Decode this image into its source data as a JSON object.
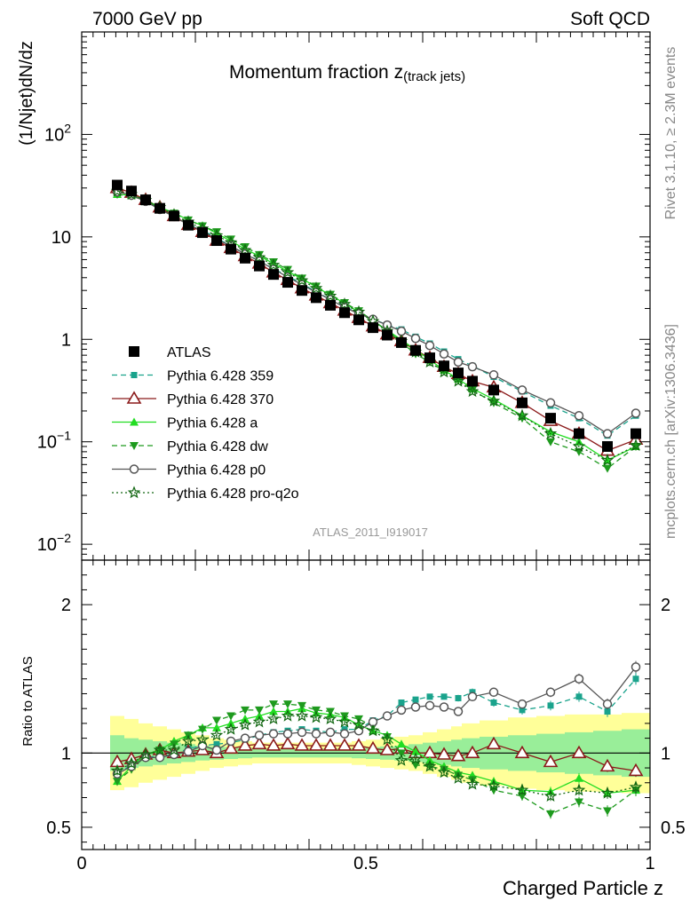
{
  "header": {
    "left": "7000 GeV pp",
    "right": "Soft QCD"
  },
  "side_labels": {
    "rivet": "Rivet 3.1.10, ≥ 2.3M events",
    "mcplots": "mcplots.cern.ch [arXiv:1306.3436]"
  },
  "chart_data": [
    {
      "type": "line",
      "panel": "main",
      "title_main": "Momentum fraction z",
      "title_sub": "(track jets)",
      "ylabel": "(1/Njet)dN/dz",
      "yscale": "log",
      "ylim": [
        0.007,
        1000
      ],
      "xlim": [
        0,
        1
      ],
      "yticks": [
        {
          "v": 0.01,
          "label": "10",
          "exp": "−2"
        },
        {
          "v": 0.1,
          "label": "10",
          "exp": "−1"
        },
        {
          "v": 1,
          "label": "1",
          "exp": ""
        },
        {
          "v": 10,
          "label": "10",
          "exp": ""
        },
        {
          "v": 100,
          "label": "10",
          "exp": "2"
        }
      ],
      "watermark": "ATLAS_2011_I919017",
      "x": [
        0.0625,
        0.0875,
        0.1125,
        0.1375,
        0.1625,
        0.1875,
        0.2125,
        0.2375,
        0.2625,
        0.2875,
        0.3125,
        0.3375,
        0.3625,
        0.3875,
        0.4125,
        0.4375,
        0.4625,
        0.4875,
        0.5125,
        0.5375,
        0.5625,
        0.5875,
        0.6125,
        0.6375,
        0.6625,
        0.6875,
        0.725,
        0.775,
        0.825,
        0.875,
        0.925,
        0.975
      ],
      "series": [
        {
          "name": "ATLAS",
          "color": "#000000",
          "marker": "square",
          "line": "none",
          "values": [
            32,
            28,
            23,
            19,
            16,
            13,
            11,
            9.2,
            7.6,
            6.2,
            5.2,
            4.3,
            3.6,
            3.0,
            2.55,
            2.15,
            1.82,
            1.55,
            1.3,
            1.1,
            0.93,
            0.78,
            0.66,
            0.55,
            0.47,
            0.39,
            0.32,
            0.24,
            0.17,
            0.12,
            0.09,
            0.12
          ]
        },
        {
          "name": "Pythia 6.428 359",
          "color": "#1aa38c",
          "marker": "smallsquare",
          "line": "dashed",
          "values": [
            27.5,
            25.8,
            22.4,
            18.6,
            15.8,
            13.4,
            11.6,
            9.8,
            8.1,
            6.8,
            5.85,
            4.9,
            4.15,
            3.5,
            2.92,
            2.45,
            2.1,
            1.8,
            1.58,
            1.38,
            1.25,
            1.06,
            0.91,
            0.76,
            0.64,
            0.55,
            0.43,
            0.31,
            0.225,
            0.17,
            0.115,
            0.18
          ]
        },
        {
          "name": "Pythia 6.428 370",
          "color": "#8b1a1a",
          "marker": "triangle-open",
          "line": "solid",
          "values": [
            30,
            27,
            23,
            19.4,
            16,
            13.1,
            11.2,
            9.2,
            7.8,
            6.5,
            5.5,
            4.5,
            3.8,
            3.15,
            2.68,
            2.26,
            1.91,
            1.62,
            1.34,
            1.12,
            0.96,
            0.78,
            0.66,
            0.54,
            0.46,
            0.39,
            0.34,
            0.24,
            0.16,
            0.12,
            0.082,
            0.105
          ]
        },
        {
          "name": "Pythia 6.428 a",
          "color": "#22dd22",
          "marker": "triangle",
          "line": "solid",
          "values": [
            26,
            25.5,
            22.8,
            19.4,
            17.2,
            14.6,
            12.9,
            10.8,
            9.1,
            7.6,
            6.5,
            5.5,
            4.6,
            3.9,
            3.25,
            2.7,
            2.25,
            1.85,
            1.5,
            1.23,
            0.99,
            0.79,
            0.63,
            0.5,
            0.41,
            0.33,
            0.26,
            0.18,
            0.125,
            0.1,
            0.066,
            0.09
          ]
        },
        {
          "name": "Pythia 6.428 dw",
          "color": "#1e9a1e",
          "marker": "triangle-down",
          "line": "dashed",
          "values": [
            26,
            25,
            22.6,
            19.4,
            17,
            14.6,
            12.8,
            11.2,
            9.5,
            8,
            6.7,
            5.7,
            4.8,
            3.95,
            3.3,
            2.75,
            2.28,
            1.9,
            1.53,
            1.22,
            0.93,
            0.72,
            0.6,
            0.49,
            0.4,
            0.32,
            0.24,
            0.17,
            0.1,
            0.08,
            0.055,
            0.09
          ]
        },
        {
          "name": "Pythia 6.428 p0",
          "color": "#555555",
          "marker": "circle-open",
          "line": "solid",
          "values": [
            27.5,
            25.5,
            22.2,
            18.5,
            15.8,
            13.1,
            11.5,
            9.4,
            8.2,
            6.8,
            5.8,
            4.85,
            4.05,
            3.42,
            2.87,
            2.45,
            2.05,
            1.78,
            1.57,
            1.38,
            1.2,
            1.02,
            0.87,
            0.72,
            0.6,
            0.54,
            0.45,
            0.32,
            0.24,
            0.18,
            0.12,
            0.19
          ]
        },
        {
          "name": "Pythia 6.428 pro-q2o",
          "color": "#116611",
          "marker": "star",
          "line": "dotted",
          "values": [
            28,
            26,
            22.8,
            19.4,
            16.4,
            14,
            12,
            10.3,
            8.8,
            7.4,
            6.3,
            5.3,
            4.5,
            3.75,
            3.15,
            2.65,
            2.2,
            1.85,
            1.5,
            1.2,
            0.96,
            0.75,
            0.6,
            0.48,
            0.39,
            0.31,
            0.25,
            0.18,
            0.12,
            0.09,
            0.066,
            0.092
          ]
        }
      ]
    },
    {
      "type": "line",
      "panel": "ratio",
      "ylabel": "Ratio to ATLAS",
      "xlabel": "Charged Particle z",
      "ylim": [
        0.35,
        2.3
      ],
      "yticks": [
        {
          "v": 0.5,
          "label": "0.5"
        },
        {
          "v": 1,
          "label": "1"
        },
        {
          "v": 2,
          "label": "2"
        }
      ],
      "xticks": [
        {
          "v": 0,
          "label": "0"
        },
        {
          "v": 0.5,
          "label": "0.5"
        },
        {
          "v": 1,
          "label": "1"
        }
      ],
      "band_inner": [
        0.12,
        0.1,
        0.09,
        0.08,
        0.07,
        0.06,
        0.05,
        0.045,
        0.04,
        0.035,
        0.03,
        0.03,
        0.03,
        0.03,
        0.03,
        0.03,
        0.03,
        0.035,
        0.04,
        0.045,
        0.05,
        0.06,
        0.07,
        0.08,
        0.09,
        0.1,
        0.11,
        0.12,
        0.13,
        0.14,
        0.15,
        0.16
      ],
      "band_outer": [
        0.25,
        0.23,
        0.2,
        0.18,
        0.16,
        0.14,
        0.12,
        0.1,
        0.09,
        0.08,
        0.07,
        0.07,
        0.07,
        0.07,
        0.07,
        0.07,
        0.07,
        0.08,
        0.09,
        0.1,
        0.11,
        0.12,
        0.14,
        0.16,
        0.18,
        0.2,
        0.22,
        0.24,
        0.25,
        0.26,
        0.26,
        0.27
      ],
      "ratios": [
        [
          0.86,
          0.92,
          0.97,
          0.98,
          0.99,
          1.03,
          1.05,
          1.06,
          1.07,
          1.09,
          1.12,
          1.14,
          1.15,
          1.16,
          1.15,
          1.14,
          1.16,
          1.16,
          1.22,
          1.25,
          1.34,
          1.36,
          1.38,
          1.38,
          1.37,
          1.41,
          1.34,
          1.29,
          1.32,
          1.38,
          1.28,
          1.5
        ],
        [
          0.94,
          0.96,
          0.99,
          1.02,
          1.0,
          1.01,
          1.02,
          1.0,
          1.03,
          1.05,
          1.06,
          1.05,
          1.06,
          1.05,
          1.05,
          1.05,
          1.05,
          1.05,
          1.03,
          1.02,
          1.03,
          1.0,
          1.0,
          0.99,
          0.98,
          1.0,
          1.06,
          1.0,
          0.94,
          1.0,
          0.91,
          0.88
        ],
        [
          0.81,
          0.91,
          0.99,
          1.02,
          1.08,
          1.12,
          1.17,
          1.17,
          1.2,
          1.23,
          1.25,
          1.28,
          1.28,
          1.3,
          1.27,
          1.26,
          1.24,
          1.19,
          1.15,
          1.12,
          1.06,
          1.01,
          0.95,
          0.91,
          0.87,
          0.85,
          0.81,
          0.75,
          0.74,
          0.83,
          0.73,
          0.75
        ],
        [
          0.81,
          0.89,
          0.98,
          1.02,
          1.06,
          1.12,
          1.16,
          1.22,
          1.25,
          1.29,
          1.29,
          1.33,
          1.33,
          1.32,
          1.29,
          1.28,
          1.25,
          1.23,
          1.18,
          1.11,
          1.0,
          0.92,
          0.91,
          0.89,
          0.85,
          0.82,
          0.75,
          0.71,
          0.59,
          0.67,
          0.61,
          0.75
        ],
        [
          0.86,
          0.91,
          0.97,
          0.97,
          0.99,
          1.01,
          1.05,
          1.02,
          1.08,
          1.1,
          1.12,
          1.13,
          1.13,
          1.14,
          1.13,
          1.14,
          1.13,
          1.15,
          1.21,
          1.25,
          1.29,
          1.31,
          1.32,
          1.31,
          1.28,
          1.38,
          1.41,
          1.33,
          1.41,
          1.5,
          1.33,
          1.58
        ],
        [
          0.88,
          0.93,
          0.99,
          1.02,
          1.02,
          1.08,
          1.09,
          1.12,
          1.16,
          1.19,
          1.21,
          1.23,
          1.25,
          1.25,
          1.24,
          1.23,
          1.21,
          1.19,
          1.15,
          1.09,
          0.95,
          0.96,
          0.91,
          0.87,
          0.83,
          0.79,
          0.78,
          0.75,
          0.71,
          0.75,
          0.73,
          0.77
        ]
      ]
    }
  ]
}
